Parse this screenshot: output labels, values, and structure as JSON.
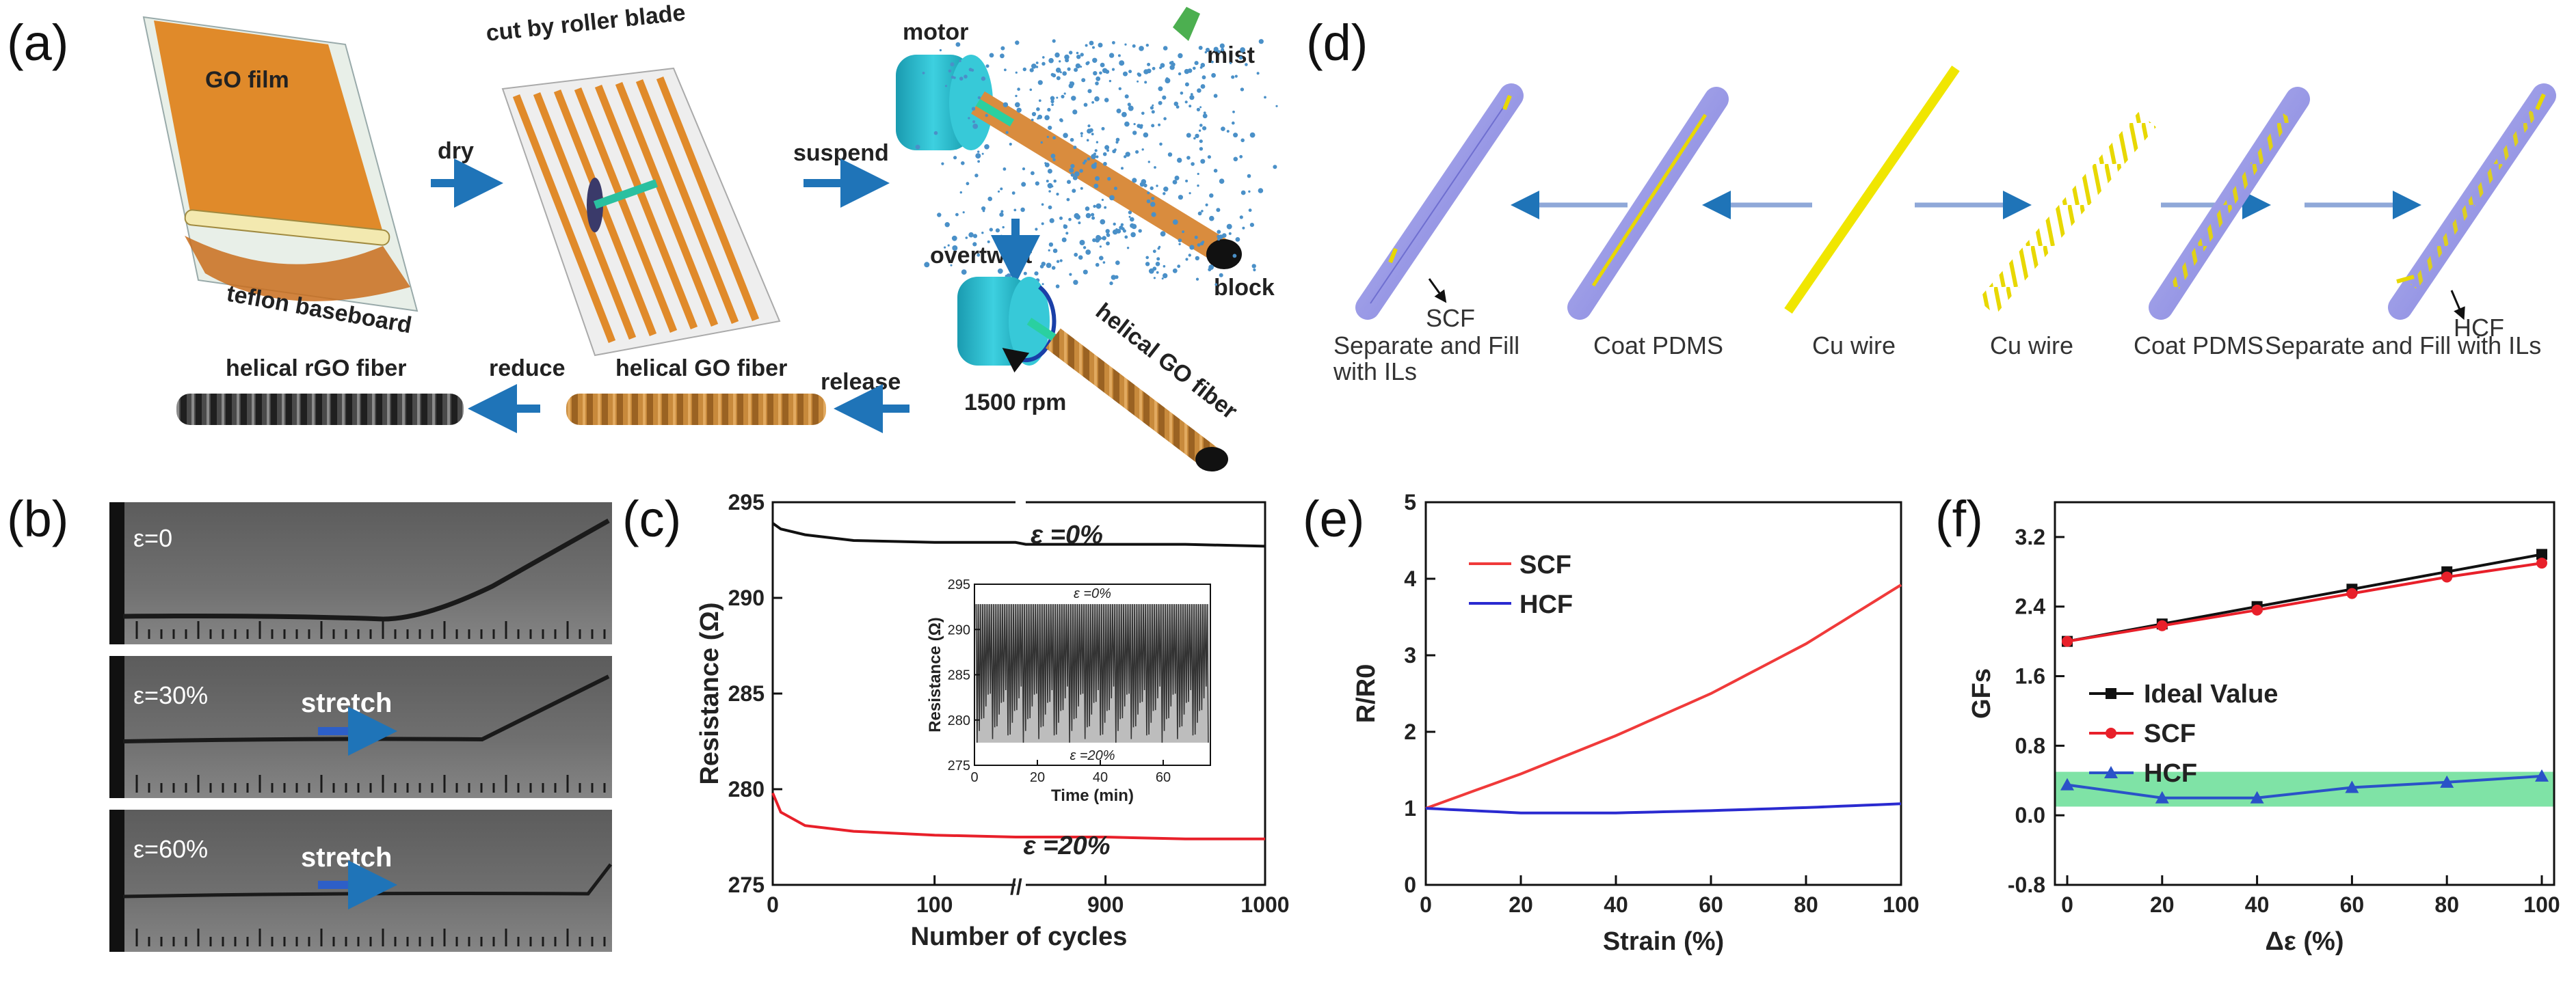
{
  "panels": {
    "a": {
      "label": "(a)",
      "go_film": "GO film",
      "teflon": "teflon baseboard",
      "dry": "dry",
      "cut": "cut by roller blade",
      "suspend": "suspend",
      "motor": "motor",
      "mist": "mist",
      "overtwist": "overtwist",
      "block": "block",
      "rpm": "1500 rpm",
      "helical_go_fiber_diag": "helical GO fiber",
      "release": "release",
      "helical_go_fiber": "helical GO fiber",
      "reduce": "reduce",
      "helical_rgo_fiber": "helical rGO fiber"
    },
    "b": {
      "label": "(b)",
      "strain0": "ε=0",
      "strain30": "ε=30%",
      "strain60": "ε=60%",
      "stretch1": "stretch",
      "stretch2": "stretch"
    },
    "c": {
      "label": "(c)"
    },
    "d": {
      "label": "(d)",
      "cap_sep_left": "Separate and Fill",
      "cap_sep_left2": "with ILs",
      "cap_scf": "SCF",
      "cap_coat_left": "Coat PDMS",
      "cap_cu1": "Cu wire",
      "cap_cu2": "Cu wire",
      "cap_coat_right": "Coat PDMS",
      "cap_sep_right": "Separate and Fill with ILs",
      "cap_hcf": "HCF"
    },
    "e": {
      "label": "(e)"
    },
    "f": {
      "label": "(f)"
    }
  },
  "chart_data": [
    {
      "id": "c",
      "type": "line",
      "xlabel": "Number of cycles",
      "ylabel": "Resistance (Ω)",
      "ylim": [
        275,
        295
      ],
      "yticks": [
        "275",
        "280",
        "285",
        "290",
        "295"
      ],
      "xticks": [
        "0",
        "100",
        "900",
        "1000"
      ],
      "x_break": "//",
      "series": [
        {
          "name": "ε =0%",
          "color": "#111111",
          "x": [
            0,
            5,
            20,
            50,
            100,
            150,
            850,
            900,
            950,
            1000
          ],
          "values": [
            293.9,
            293.6,
            293.3,
            293.0,
            292.9,
            292.9,
            292.8,
            292.8,
            292.8,
            292.7
          ]
        },
        {
          "name": "ε =20%",
          "color": "#e8202a",
          "x": [
            0,
            5,
            20,
            50,
            100,
            150,
            850,
            900,
            950,
            1000
          ],
          "values": [
            279.8,
            278.8,
            278.1,
            277.8,
            277.6,
            277.5,
            277.5,
            277.5,
            277.4,
            277.4
          ]
        }
      ],
      "inset": {
        "xlabel": "Time (min)",
        "ylabel": "Resistance (Ω)",
        "ylim": [
          275,
          295
        ],
        "yticks": [
          "275",
          "280",
          "285",
          "290",
          "295"
        ],
        "xlim": [
          0,
          75
        ],
        "xticks": [
          "0",
          "20",
          "40",
          "60"
        ],
        "top_label": "ε =0%",
        "bottom_label": "ε =20%",
        "high": 292.8,
        "low": 277.5
      }
    },
    {
      "id": "e",
      "type": "line",
      "xlabel": "Strain (%)",
      "ylabel": "R/R0",
      "xlim": [
        0,
        100
      ],
      "ylim": [
        0,
        5
      ],
      "xticks": [
        "0",
        "20",
        "40",
        "60",
        "80",
        "100"
      ],
      "yticks": [
        "0",
        "1",
        "2",
        "3",
        "4",
        "5"
      ],
      "series": [
        {
          "name": "SCF",
          "color": "#f03a3a",
          "x": [
            0,
            20,
            40,
            60,
            80,
            100
          ],
          "values": [
            1.0,
            1.45,
            1.95,
            2.5,
            3.15,
            3.92
          ]
        },
        {
          "name": "HCF",
          "color": "#2a2ad0",
          "x": [
            0,
            20,
            40,
            60,
            80,
            100
          ],
          "values": [
            1.0,
            0.94,
            0.94,
            0.97,
            1.01,
            1.06
          ]
        }
      ]
    },
    {
      "id": "f",
      "type": "line",
      "xlabel": "Δε (%)",
      "ylabel": "GFs",
      "xlim": [
        0,
        100
      ],
      "ylim": [
        -0.8,
        3.6
      ],
      "xticks": [
        "0",
        "20",
        "40",
        "60",
        "80",
        "100"
      ],
      "yticks": [
        "-0.8",
        "0.0",
        "0.8",
        "1.6",
        "2.4",
        "3.2"
      ],
      "band": [
        0.1,
        0.5
      ],
      "band_color": "#7fe3a6",
      "series": [
        {
          "name": "Ideal Value",
          "color": "#111111",
          "marker": "square",
          "x": [
            0,
            20,
            40,
            60,
            80,
            100
          ],
          "values": [
            2.0,
            2.2,
            2.4,
            2.6,
            2.8,
            3.0
          ]
        },
        {
          "name": "SCF",
          "color": "#e8202a",
          "marker": "circle",
          "x": [
            0,
            20,
            40,
            60,
            80,
            100
          ],
          "values": [
            2.0,
            2.18,
            2.36,
            2.55,
            2.74,
            2.9
          ]
        },
        {
          "name": "HCF",
          "color": "#2a52c8",
          "marker": "triangle",
          "x": [
            0,
            20,
            40,
            60,
            80,
            100
          ],
          "values": [
            0.35,
            0.2,
            0.2,
            0.32,
            0.38,
            0.45
          ]
        }
      ]
    }
  ]
}
